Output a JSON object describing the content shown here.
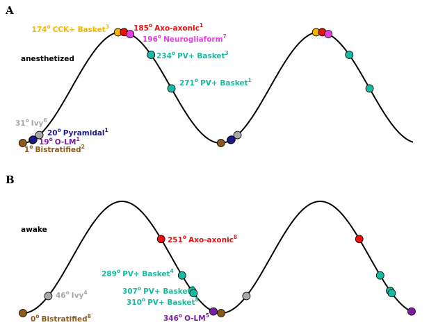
{
  "degree_symbol": "o",
  "panels": [
    {
      "letter": "A",
      "state": "anesthetized",
      "cells": [
        {
          "phase": 1,
          "name": "Bistratified",
          "ref": "2",
          "color": "#8b5a1b"
        },
        {
          "phase": 19,
          "name": "O-LM",
          "ref": "1",
          "color": "#7b1fa2"
        },
        {
          "phase": 20,
          "name": "Pyramidal",
          "ref": "1",
          "color": "#1a1a8a"
        },
        {
          "phase": 31,
          "name": "Ivy",
          "ref": "6",
          "color": "#a8a8a8"
        },
        {
          "phase": 174,
          "name": "CCK+ Basket",
          "ref": "3",
          "color": "#f5b400"
        },
        {
          "phase": 185,
          "name": "Axo-axonic",
          "ref": "1",
          "color": "#e81010"
        },
        {
          "phase": 196,
          "name": "Neurogliaform",
          "ref": "7",
          "color": "#e040e0"
        },
        {
          "phase": 234,
          "name": "PV+ Basket",
          "ref": "3",
          "color": "#17b9a0"
        },
        {
          "phase": 271,
          "name": "PV+ Basket",
          "ref": "1",
          "color": "#17b9a0"
        }
      ]
    },
    {
      "letter": "B",
      "state": "awake",
      "cells": [
        {
          "phase": 0,
          "name": "Bistratified",
          "ref": "8",
          "color": "#8b5a1b"
        },
        {
          "phase": 46,
          "name": "Ivy",
          "ref": "4",
          "color": "#a8a8a8"
        },
        {
          "phase": 251,
          "name": "Axo-axonic",
          "ref": "8",
          "color": "#e81010"
        },
        {
          "phase": 289,
          "name": "PV+ Basket",
          "ref": "4",
          "color": "#17b9a0"
        },
        {
          "phase": 307,
          "name": "PV+ Basket",
          "ref": "5",
          "color": "#17b9a0"
        },
        {
          "phase": 310,
          "name": "PV+ Basket",
          "ref": "8",
          "color": "#17b9a0"
        },
        {
          "phase": 346,
          "name": "O-LM",
          "ref": "5",
          "color": "#7b1fa2"
        }
      ]
    }
  ]
}
